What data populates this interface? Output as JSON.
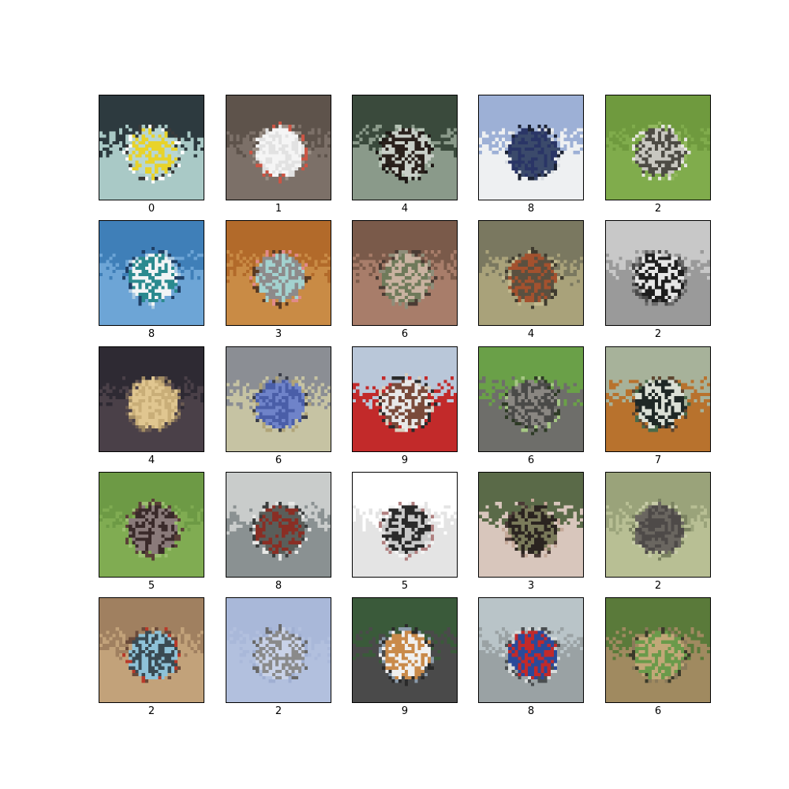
{
  "images": [
    {
      "label": "0",
      "icon": "speedboat-on-lake-picture",
      "palette": [
        "#2d3a3f",
        "#a9c9c6",
        "#b8d6d3",
        "#e8d32a",
        "#ffffff",
        "#3b3b3b"
      ]
    },
    {
      "label": "1",
      "icon": "white-car-picture",
      "palette": [
        "#5e534b",
        "#7c7068",
        "#e2e2e2",
        "#f5f5f5",
        "#9a8f86",
        "#cc5544"
      ]
    },
    {
      "label": "4",
      "icon": "deer-picture",
      "palette": [
        "#3a4a3c",
        "#8a9a8a",
        "#c9cfc8",
        "#2a211c",
        "#b4c3b4",
        "#1d1815"
      ]
    },
    {
      "label": "8",
      "icon": "ferry-ship-picture",
      "palette": [
        "#9db0d6",
        "#eef0f2",
        "#3b4a6b",
        "#2a3566",
        "#d7dbe0",
        "#1c2233"
      ]
    },
    {
      "label": "2",
      "icon": "bird-on-grass-picture",
      "palette": [
        "#6f9a3e",
        "#80ac4c",
        "#c8c7c0",
        "#4d4b44",
        "#92b85e",
        "#e6e6e0"
      ]
    },
    {
      "label": "8",
      "icon": "yacht-picture",
      "palette": [
        "#3f7fb8",
        "#6da5d6",
        "#f2f4f5",
        "#2b8a8f",
        "#a9c9e2",
        "#1f3f66"
      ]
    },
    {
      "label": "3",
      "icon": "cat-on-floor-picture",
      "palette": [
        "#b26a2a",
        "#c98b45",
        "#8d8a8a",
        "#a3d2cf",
        "#e08a8a",
        "#5a3a22"
      ]
    },
    {
      "label": "6",
      "icon": "frog-on-rock-picture",
      "palette": [
        "#7a5a4a",
        "#a87d6a",
        "#6f7a5a",
        "#c9b2a0",
        "#4a3b33",
        "#8e8e7a"
      ]
    },
    {
      "label": "4",
      "icon": "deer-in-field-picture",
      "palette": [
        "#7a7860",
        "#a9a27a",
        "#a3512e",
        "#5a5040",
        "#c2b98e",
        "#3e3a2e"
      ]
    },
    {
      "label": "2",
      "icon": "ostrich-picture",
      "palette": [
        "#c8c8c8",
        "#9a9a9a",
        "#1e1e1e",
        "#e6e6e6",
        "#6a6a6a",
        "#4a4a4a"
      ]
    },
    {
      "label": "4",
      "icon": "field-at-dusk-picture",
      "palette": [
        "#2e2a33",
        "#4a4048",
        "#c9ae78",
        "#e0c690",
        "#6a5a52",
        "#a08a62"
      ]
    },
    {
      "label": "6",
      "icon": "frog-closeup-picture",
      "palette": [
        "#8b8e94",
        "#c6c3a3",
        "#4a5ea8",
        "#6f83c9",
        "#3a3d48",
        "#b0a478"
      ]
    },
    {
      "label": "9",
      "icon": "fire-truck-picture",
      "palette": [
        "#b9c7d9",
        "#c22a2a",
        "#e8e8e8",
        "#7a4a3a",
        "#2a2a2a",
        "#d9d0c0"
      ]
    },
    {
      "label": "6",
      "icon": "toad-picture",
      "palette": [
        "#6aa048",
        "#6e6e6a",
        "#8a8782",
        "#4a4a48",
        "#a6c784",
        "#2d3a25"
      ]
    },
    {
      "label": "7",
      "icon": "horse-head-picture",
      "palette": [
        "#a7b29a",
        "#b8722d",
        "#1f2826",
        "#dbe0d6",
        "#4a6a4a",
        "#5e4630"
      ]
    },
    {
      "label": "5",
      "icon": "dog-on-grass-picture",
      "palette": [
        "#6d9a45",
        "#80ac52",
        "#3a2a2a",
        "#8a7a7a",
        "#5a4038",
        "#9cbf70"
      ]
    },
    {
      "label": "8",
      "icon": "speedboat-picture",
      "palette": [
        "#c9cccb",
        "#8a9192",
        "#8a2e24",
        "#5a5e5a",
        "#e8e8e6",
        "#3a3d3d"
      ]
    },
    {
      "label": "5",
      "icon": "white-puppy-picture",
      "palette": [
        "#ffffff",
        "#e4e4e4",
        "#c8c8c8",
        "#2a2a2a",
        "#b08080",
        "#f4f4f4"
      ]
    },
    {
      "label": "3",
      "icon": "siamese-cat-picture",
      "palette": [
        "#5a6a48",
        "#d8c6bc",
        "#2b2420",
        "#7a7a5a",
        "#c4a898",
        "#4a3a36"
      ]
    },
    {
      "label": "2",
      "icon": "emu-picture",
      "palette": [
        "#9aa37a",
        "#b8bf94",
        "#4e4a48",
        "#6a6660",
        "#c8cca8",
        "#7a8260"
      ]
    },
    {
      "label": "2",
      "icon": "emu-head-picture",
      "palette": [
        "#a08060",
        "#c2a27a",
        "#3a4a52",
        "#8ec2d8",
        "#6a4a3a",
        "#b83a2a"
      ]
    },
    {
      "label": "2",
      "icon": "bird-in-sky-picture",
      "palette": [
        "#a9b8d9",
        "#b2c0de",
        "#8a8a8a",
        "#c9d2e8",
        "#a0afd2",
        "#6a6a6a"
      ]
    },
    {
      "label": "9",
      "icon": "flatbed-truck-picture",
      "palette": [
        "#3a5a3a",
        "#4a4a4a",
        "#f0f0f0",
        "#c98a4a",
        "#2a2a2a",
        "#8a9aaa"
      ]
    },
    {
      "label": "8",
      "icon": "fishing-boat-picture",
      "palette": [
        "#b9c4c8",
        "#9aa2a4",
        "#2a4a9a",
        "#c22a2a",
        "#d8dcdc",
        "#4a4e50"
      ]
    },
    {
      "label": "6",
      "icon": "frog-in-grass-picture",
      "palette": [
        "#5a7a3a",
        "#a08a60",
        "#c2a878",
        "#6a9a4a",
        "#3a3a2a",
        "#8a7a5a"
      ]
    }
  ]
}
